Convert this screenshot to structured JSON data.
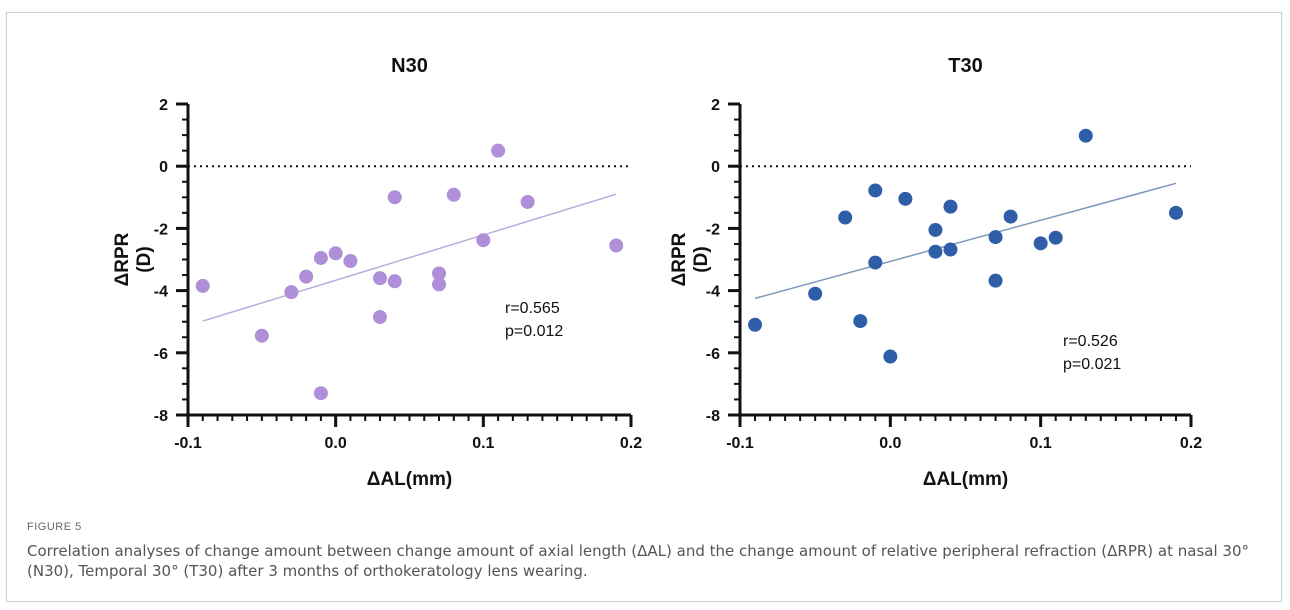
{
  "figure": {
    "label": "FIGURE 5",
    "caption": "Correlation analyses of change amount between change amount of axial length (ΔAL) and the change amount of relative peripheral refraction (ΔRPR) at nasal 30° (N30), Temporal 30° (T30) after 3 months of orthokeratology lens wearing."
  },
  "chart_data": [
    {
      "type": "scatter",
      "title": "N30",
      "xlabel": "ΔAL(mm)",
      "ylabel_line1": "ΔRPR",
      "ylabel_line2": "(D)",
      "xlim": [
        -0.1,
        0.2
      ],
      "ylim": [
        -8,
        2
      ],
      "xticks": [
        -0.1,
        0.0,
        0.1,
        0.2
      ],
      "xtick_labels": [
        "-0.1",
        "0.0",
        "0.1",
        "0.2"
      ],
      "yticks": [
        -8,
        -6,
        -4,
        -2,
        0,
        2
      ],
      "ytick_labels": [
        "-8",
        "-6",
        "-4",
        "-2",
        "0",
        "2"
      ],
      "point_color": "#ae8fd8",
      "line_color": "#b9addb",
      "points": [
        {
          "x": -0.09,
          "y": -3.85
        },
        {
          "x": -0.05,
          "y": -5.45
        },
        {
          "x": -0.03,
          "y": -4.05
        },
        {
          "x": -0.02,
          "y": -3.55
        },
        {
          "x": -0.01,
          "y": -2.95
        },
        {
          "x": -0.01,
          "y": -7.3
        },
        {
          "x": 0.0,
          "y": -2.8
        },
        {
          "x": 0.01,
          "y": -3.05
        },
        {
          "x": 0.03,
          "y": -3.6
        },
        {
          "x": 0.03,
          "y": -4.85
        },
        {
          "x": 0.04,
          "y": -3.7
        },
        {
          "x": 0.04,
          "y": -1.0
        },
        {
          "x": 0.07,
          "y": -3.45
        },
        {
          "x": 0.07,
          "y": -3.8
        },
        {
          "x": 0.08,
          "y": -0.92
        },
        {
          "x": 0.1,
          "y": -2.38
        },
        {
          "x": 0.11,
          "y": 0.5
        },
        {
          "x": 0.13,
          "y": -1.15
        },
        {
          "x": 0.19,
          "y": -2.55
        }
      ],
      "fit": {
        "x": [
          -0.09,
          0.19
        ],
        "y": [
          -4.98,
          -0.9
        ]
      },
      "zero_line": 0,
      "stats": [
        "r=0.565",
        "p=0.012"
      ]
    },
    {
      "type": "scatter",
      "title": "T30",
      "xlabel": "ΔAL(mm)",
      "ylabel_line1": "ΔRPR",
      "ylabel_line2": "(D)",
      "xlim": [
        -0.1,
        0.2
      ],
      "ylim": [
        -8,
        2
      ],
      "xticks": [
        -0.1,
        0.0,
        0.1,
        0.2
      ],
      "xtick_labels": [
        "-0.1",
        "0.0",
        "0.1",
        "0.2"
      ],
      "yticks": [
        -8,
        -6,
        -4,
        -2,
        0,
        2
      ],
      "ytick_labels": [
        "-8",
        "-6",
        "-4",
        "-2",
        "0",
        "2"
      ],
      "point_color": "#2f5ea8",
      "line_color": "#7d98b8",
      "points": [
        {
          "x": -0.09,
          "y": -5.1
        },
        {
          "x": -0.05,
          "y": -4.1
        },
        {
          "x": -0.03,
          "y": -1.65
        },
        {
          "x": -0.02,
          "y": -4.98
        },
        {
          "x": -0.01,
          "y": -0.78
        },
        {
          "x": -0.01,
          "y": -3.1
        },
        {
          "x": 0.0,
          "y": -6.12
        },
        {
          "x": 0.01,
          "y": -1.05
        },
        {
          "x": 0.03,
          "y": -2.05
        },
        {
          "x": 0.03,
          "y": -2.75
        },
        {
          "x": 0.04,
          "y": -1.3
        },
        {
          "x": 0.04,
          "y": -2.68
        },
        {
          "x": 0.07,
          "y": -2.28
        },
        {
          "x": 0.07,
          "y": -3.68
        },
        {
          "x": 0.08,
          "y": -1.62
        },
        {
          "x": 0.1,
          "y": -2.48
        },
        {
          "x": 0.11,
          "y": -2.3
        },
        {
          "x": 0.13,
          "y": 0.98
        },
        {
          "x": 0.19,
          "y": -1.5
        }
      ],
      "fit": {
        "x": [
          -0.09,
          0.19
        ],
        "y": [
          -4.25,
          -0.55
        ]
      },
      "zero_line": 0,
      "stats": [
        "r=0.526",
        "p=0.021"
      ]
    }
  ]
}
